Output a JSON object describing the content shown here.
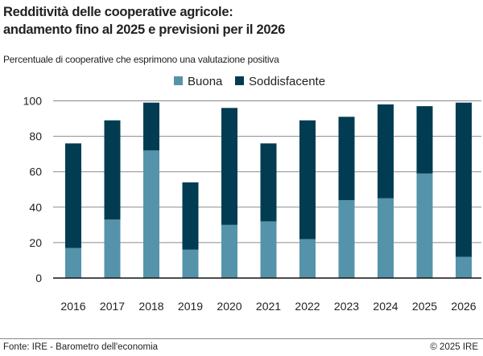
{
  "chart_data": {
    "type": "bar",
    "stacked": true,
    "title": "Redditività delle cooperative agricole: andamento fino al 2025 e previsioni per il 2026",
    "title_lines": [
      "Redditività delle cooperative agricole:",
      "andamento fino al 2025 e previsioni per il 2026"
    ],
    "subtitle": "Percentuale di cooperative che esprimono una valutazione positiva",
    "categories": [
      "2016",
      "2017",
      "2018",
      "2019",
      "2020",
      "2021",
      "2022",
      "2023",
      "2024",
      "2025",
      "2026"
    ],
    "series": [
      {
        "name": "Buona",
        "color": "#5593ab",
        "values": [
          17,
          33,
          72,
          16,
          30,
          32,
          22,
          44,
          45,
          59,
          12
        ]
      },
      {
        "name": "Soddisfacente",
        "color": "#023c52",
        "values": [
          59,
          56,
          27,
          38,
          66,
          44,
          67,
          47,
          53,
          38,
          87
        ]
      }
    ],
    "ylim": [
      0,
      100
    ],
    "yticks": [
      0,
      20,
      40,
      60,
      80,
      100
    ],
    "grid": true,
    "legend": "top-center",
    "xlabel": "",
    "ylabel": ""
  },
  "footer": {
    "source": "Fonte: IRE - Barometro dell'economia",
    "copyright": "© 2025 IRE"
  }
}
